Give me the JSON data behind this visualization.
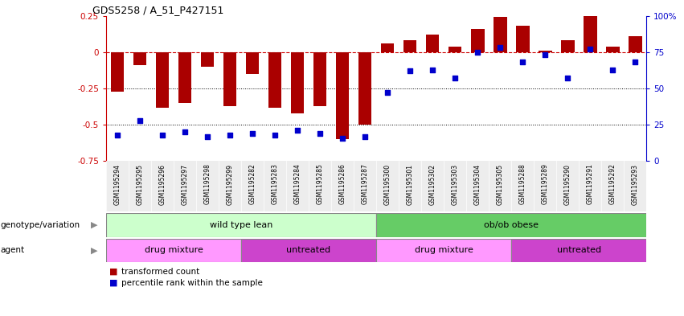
{
  "title": "GDS5258 / A_51_P427151",
  "samples": [
    "GSM1195294",
    "GSM1195295",
    "GSM1195296",
    "GSM1195297",
    "GSM1195298",
    "GSM1195299",
    "GSM1195282",
    "GSM1195283",
    "GSM1195284",
    "GSM1195285",
    "GSM1195286",
    "GSM1195287",
    "GSM1195300",
    "GSM1195301",
    "GSM1195302",
    "GSM1195303",
    "GSM1195304",
    "GSM1195305",
    "GSM1195288",
    "GSM1195289",
    "GSM1195290",
    "GSM1195291",
    "GSM1195292",
    "GSM1195293"
  ],
  "bar_values": [
    -0.27,
    -0.09,
    -0.38,
    -0.35,
    -0.1,
    -0.37,
    -0.15,
    -0.38,
    -0.42,
    -0.37,
    -0.6,
    -0.5,
    0.06,
    0.08,
    0.12,
    0.04,
    0.16,
    0.24,
    0.18,
    0.01,
    0.08,
    0.25,
    0.04,
    0.11
  ],
  "percentile_values": [
    18,
    28,
    18,
    20,
    17,
    18,
    19,
    18,
    21,
    19,
    16,
    17,
    47,
    62,
    63,
    57,
    75,
    78,
    68,
    73,
    57,
    77,
    63,
    68
  ],
  "bar_color": "#aa0000",
  "dot_color": "#0000cc",
  "hline_color": "#cc0000",
  "ylim": [
    -0.75,
    0.25
  ],
  "yticks_left": [
    -0.75,
    -0.5,
    -0.25,
    0,
    0.25
  ],
  "yticks_right": [
    0,
    25,
    50,
    75,
    100
  ],
  "genotype_groups": [
    {
      "label": "wild type lean",
      "start": 0,
      "end": 11,
      "color": "#ccffcc"
    },
    {
      "label": "ob/ob obese",
      "start": 12,
      "end": 23,
      "color": "#66cc66"
    }
  ],
  "agent_groups": [
    {
      "label": "drug mixture",
      "start": 0,
      "end": 5,
      "color": "#ff99ff"
    },
    {
      "label": "untreated",
      "start": 6,
      "end": 11,
      "color": "#cc44cc"
    },
    {
      "label": "drug mixture",
      "start": 12,
      "end": 17,
      "color": "#ff99ff"
    },
    {
      "label": "untreated",
      "start": 18,
      "end": 23,
      "color": "#cc44cc"
    }
  ],
  "legend_label_bar": "transformed count",
  "legend_label_dot": "percentile rank within the sample"
}
